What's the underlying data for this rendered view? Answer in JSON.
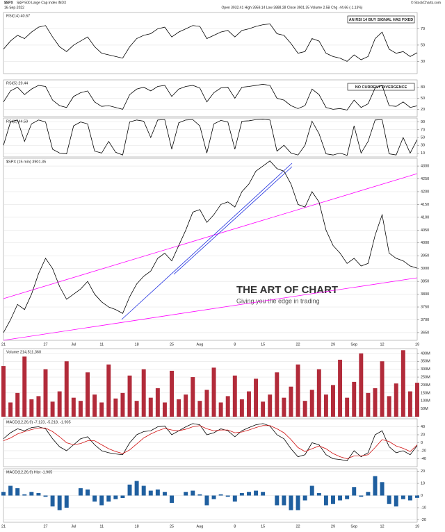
{
  "header": {
    "symbol": "$SPX",
    "name": "S&P 500 Large Cap Index INDX",
    "date": "16-Sep-2022",
    "quote": "Open 3932.41 High 3959.14 Low 3888.28 Close 3901.35 Volume 2.5B Chg -44.66 (-1.13%)",
    "credit": "© StockCharts.com"
  },
  "chart_data": [
    {
      "type": "line",
      "title": "RSI(14) 40.67",
      "annotation": "AN RSI 14 BUY SIGNAL HAS FIXED",
      "series": [
        {
          "name": "RSI(14)",
          "color": "#000000",
          "values": [
            45,
            55,
            62,
            58,
            66,
            72,
            74,
            60,
            48,
            42,
            50,
            55,
            60,
            48,
            40,
            38,
            36,
            34,
            48,
            58,
            62,
            64,
            70,
            72,
            60,
            66,
            70,
            74,
            73,
            58,
            62,
            66,
            68,
            60,
            68,
            70,
            73,
            75,
            76,
            64,
            62,
            52,
            40,
            42,
            58,
            55,
            40,
            36,
            34,
            30,
            38,
            32,
            36,
            58,
            66,
            45,
            40,
            42,
            36,
            40.67
          ]
        }
      ],
      "ylim": [
        15,
        90
      ],
      "yticks": [
        30,
        50,
        70
      ],
      "grid": true
    },
    {
      "type": "line",
      "title": "RSI(5) 29.44",
      "annotation": "NO CURRENT DIVERGENCE",
      "series": [
        {
          "name": "RSI(5)",
          "color": "#000000",
          "values": [
            40,
            70,
            80,
            60,
            75,
            85,
            82,
            45,
            30,
            25,
            55,
            65,
            70,
            40,
            28,
            30,
            25,
            20,
            60,
            75,
            80,
            70,
            82,
            85,
            55,
            75,
            82,
            85,
            78,
            40,
            65,
            78,
            80,
            50,
            80,
            82,
            85,
            88,
            85,
            50,
            45,
            30,
            22,
            30,
            75,
            60,
            25,
            20,
            22,
            18,
            45,
            25,
            35,
            78,
            85,
            30,
            28,
            40,
            25,
            29.44
          ]
        }
      ],
      "ylim": [
        0,
        100
      ],
      "yticks": [
        20,
        50,
        80
      ],
      "grid": true
    },
    {
      "type": "line",
      "title": "RSI(2) 44.59",
      "series": [
        {
          "name": "RSI(2)",
          "color": "#000000",
          "values": [
            30,
            90,
            95,
            40,
            85,
            95,
            90,
            20,
            10,
            8,
            80,
            90,
            85,
            15,
            10,
            40,
            12,
            5,
            90,
            95,
            92,
            50,
            95,
            96,
            20,
            88,
            95,
            96,
            80,
            10,
            85,
            94,
            90,
            20,
            92,
            93,
            96,
            97,
            95,
            15,
            30,
            10,
            5,
            30,
            92,
            60,
            8,
            5,
            10,
            4,
            80,
            10,
            40,
            95,
            96,
            8,
            5,
            50,
            10,
            44.59
          ]
        }
      ],
      "ylim": [
        0,
        100
      ],
      "yticks": [
        10,
        30,
        50,
        70,
        90
      ],
      "grid": true
    },
    {
      "type": "line",
      "title": "$SPX (15 min) 3901.35",
      "watermark": "THE ART OF CHART",
      "tagline": "Giving you the edge in trading",
      "categories": [
        "21",
        null,
        null,
        null,
        null,
        null,
        "27",
        null,
        null,
        null,
        "Jul",
        null,
        null,
        null,
        "11",
        null,
        null,
        null,
        null,
        "18",
        null,
        null,
        null,
        null,
        "25",
        null,
        null,
        null,
        "Aug",
        null,
        null,
        null,
        null,
        "8",
        null,
        null,
        null,
        "15",
        null,
        null,
        null,
        null,
        "22",
        null,
        null,
        null,
        null,
        "29",
        null,
        null,
        "Sep",
        null,
        null,
        null,
        "12",
        null,
        null,
        null,
        null,
        "19"
      ],
      "series": [
        {
          "name": "$SPX",
          "color": "#000000",
          "values": [
            3650,
            3700,
            3760,
            3740,
            3800,
            3880,
            3940,
            3900,
            3830,
            3780,
            3800,
            3820,
            3850,
            3800,
            3770,
            3750,
            3740,
            3725,
            3790,
            3840,
            3870,
            3890,
            3940,
            3960,
            3930,
            3990,
            4050,
            4120,
            4130,
            4080,
            4110,
            4150,
            4160,
            4140,
            4200,
            4230,
            4280,
            4300,
            4320,
            4290,
            4280,
            4230,
            4150,
            4140,
            4200,
            4160,
            4050,
            3990,
            3960,
            3920,
            3940,
            3910,
            3920,
            4030,
            4110,
            3960,
            3940,
            3930,
            3910,
            3901.35
          ]
        }
      ],
      "ylim": [
        3620,
        4330
      ],
      "yticks": [
        3650,
        3700,
        3750,
        3800,
        3850,
        3900,
        3950,
        4000,
        4050,
        4100,
        4150,
        4200,
        4250,
        4300
      ],
      "grid": true
    },
    {
      "type": "bar",
      "title": "Volume 214,511,360",
      "series": [
        {
          "name": "Volume",
          "color": "#b22b3a",
          "values": [
            320,
            90,
            150,
            380,
            110,
            130,
            300,
            95,
            160,
            350,
            120,
            100,
            280,
            140,
            90,
            330,
            115,
            150,
            260,
            100,
            300,
            120,
            180,
            90,
            290,
            110,
            140,
            250,
            100,
            170,
            310,
            90,
            130,
            260,
            110,
            160,
            240,
            95,
            140,
            280,
            120,
            190,
            330,
            100,
            170,
            300,
            140,
            200,
            360,
            120,
            220,
            400,
            150,
            180,
            350,
            130,
            210,
            420,
            160,
            214.51136
          ]
        }
      ],
      "ylim": [
        0,
        430
      ],
      "yticks": [
        {
          "value": 50,
          "label": "50M"
        },
        {
          "value": 100,
          "label": "100M"
        },
        {
          "value": 150,
          "label": "150M"
        },
        {
          "value": 200,
          "label": "200M"
        },
        {
          "value": 250,
          "label": "250M"
        },
        {
          "value": 300,
          "label": "300M"
        },
        {
          "value": 350,
          "label": "350M"
        },
        {
          "value": 400,
          "label": "400M"
        }
      ],
      "grid": true
    },
    {
      "type": "line",
      "title": "MACD(12,26,9) -7.123, -5.218, -1.905",
      "series": [
        {
          "name": "MACD",
          "color": "#000000",
          "values": [
            10,
            25,
            35,
            30,
            38,
            40,
            35,
            10,
            -10,
            -20,
            -5,
            10,
            15,
            -5,
            -20,
            -25,
            -28,
            -30,
            0,
            20,
            28,
            30,
            40,
            42,
            20,
            30,
            40,
            48,
            45,
            20,
            25,
            35,
            30,
            15,
            30,
            38,
            45,
            48,
            42,
            20,
            10,
            -15,
            -35,
            -30,
            0,
            -5,
            -30,
            -40,
            -42,
            -45,
            -20,
            -35,
            -25,
            20,
            30,
            -10,
            -25,
            -20,
            -30,
            -7.123
          ]
        },
        {
          "name": "Signal",
          "color": "#d01010",
          "values": [
            5,
            12,
            22,
            28,
            33,
            37,
            37,
            28,
            15,
            0,
            -5,
            -2,
            5,
            5,
            -5,
            -15,
            -22,
            -27,
            -18,
            -3,
            12,
            22,
            30,
            36,
            32,
            30,
            34,
            40,
            43,
            35,
            30,
            32,
            32,
            25,
            27,
            32,
            38,
            43,
            43,
            35,
            25,
            8,
            -12,
            -22,
            -15,
            -8,
            -15,
            -27,
            -35,
            -40,
            -33,
            -33,
            -30,
            -12,
            8,
            3,
            -8,
            -14,
            -22,
            -5.218
          ]
        }
      ],
      "ylim": [
        -60,
        60
      ],
      "yticks": [
        -40,
        -20,
        0,
        20,
        40
      ],
      "grid": true
    },
    {
      "type": "bar",
      "title": "MACD(12,26,9) Hist -1.905",
      "categories": [
        "21",
        null,
        null,
        null,
        null,
        null,
        "27",
        null,
        null,
        null,
        "Jul",
        null,
        null,
        null,
        "11",
        null,
        null,
        null,
        null,
        "18",
        null,
        null,
        null,
        null,
        "25",
        null,
        null,
        null,
        "Aug",
        null,
        null,
        null,
        null,
        "8",
        null,
        null,
        null,
        "15",
        null,
        null,
        null,
        null,
        "22",
        null,
        null,
        null,
        null,
        "29",
        null,
        null,
        "Sep",
        null,
        null,
        null,
        "12",
        null,
        null,
        null,
        null,
        "19"
      ],
      "series": [
        {
          "name": "Hist",
          "color": "#1f5f9f",
          "values": [
            3,
            8,
            6,
            1,
            3,
            2,
            -1,
            -9,
            -12,
            -10,
            0,
            6,
            5,
            -5,
            -8,
            -5,
            -3,
            -2,
            9,
            12,
            8,
            4,
            5,
            3,
            -6,
            0,
            3,
            4,
            1,
            -8,
            -3,
            1,
            -1,
            -5,
            2,
            3,
            4,
            3,
            0,
            -8,
            -8,
            -12,
            -12,
            -4,
            8,
            2,
            -8,
            -7,
            -4,
            -3,
            7,
            -1,
            3,
            16,
            11,
            -7,
            -9,
            -3,
            -4,
            -1.905
          ]
        }
      ],
      "ylim": [
        -22,
        22
      ],
      "yticks": [
        -20,
        -10,
        0,
        10,
        20
      ],
      "grid": true
    }
  ]
}
